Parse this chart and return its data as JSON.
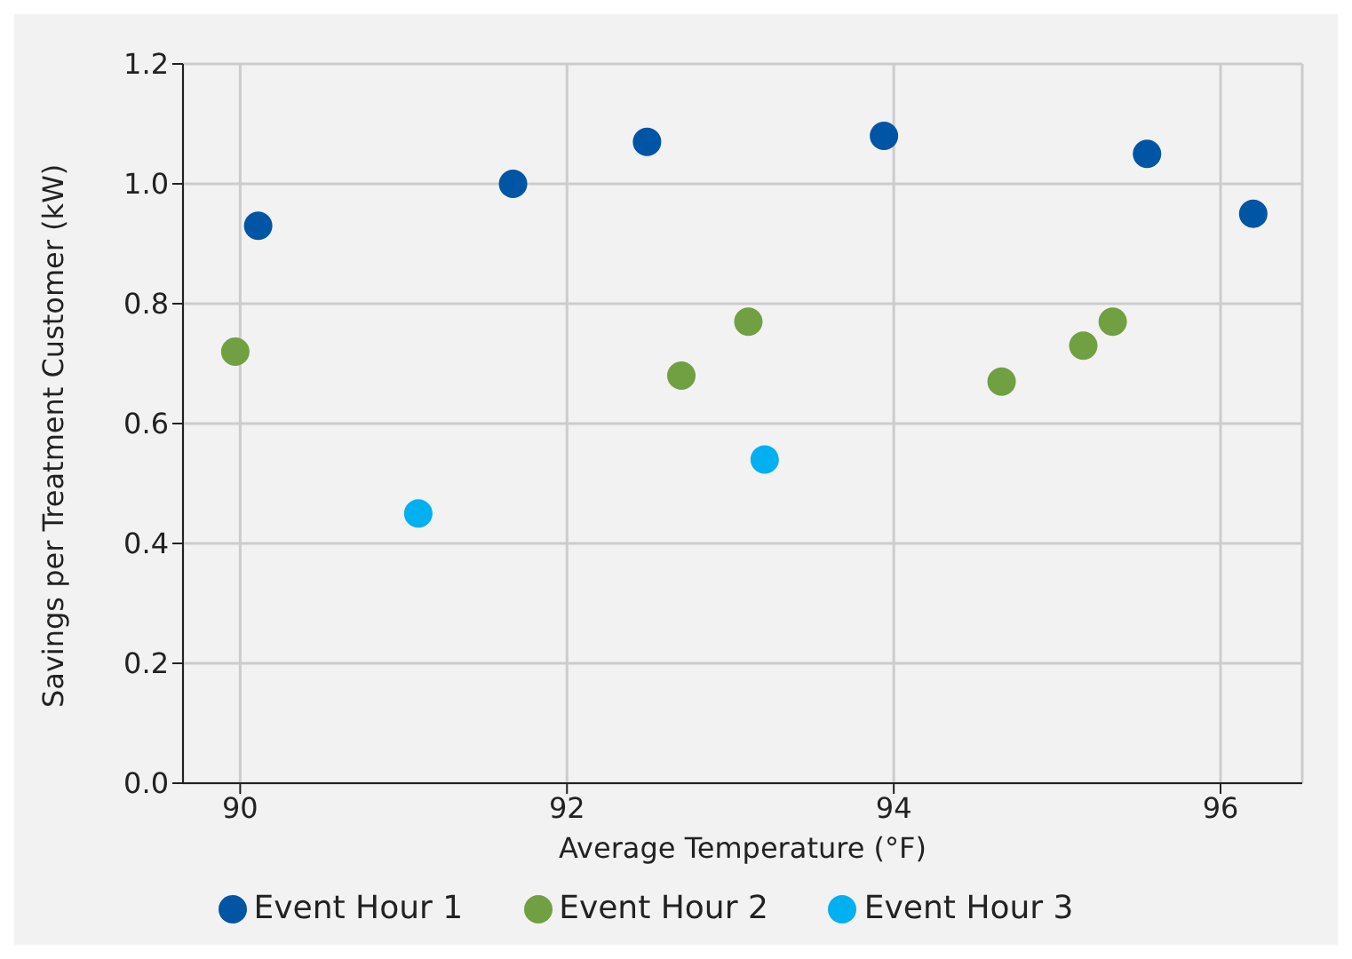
{
  "chart_data": {
    "type": "scatter",
    "xlabel": "Average Temperature (°F)",
    "ylabel": "Savings per Treatment Customer (kW)",
    "xlim": [
      89.65,
      96.5
    ],
    "xticks": [
      90,
      92,
      94,
      96
    ],
    "ylim": [
      0,
      1.2
    ],
    "yticks": [
      {
        "value": 0,
        "label": "0.0"
      },
      0.2,
      0.4,
      0.6,
      0.8,
      {
        "value": 1,
        "label": "1.0"
      },
      1.2
    ],
    "grid": true,
    "legend": "bottom",
    "marker": "circle",
    "series": [
      {
        "name": "Event Hour 1",
        "color": "#0055a5",
        "x": [
          90.11,
          91.67,
          92.49,
          93.94,
          95.55,
          96.2
        ],
        "values": [
          0.93,
          1.0,
          1.07,
          1.08,
          1.05,
          0.95
        ]
      },
      {
        "name": "Event Hour 2",
        "color": "#70a042",
        "x": [
          89.97,
          92.7,
          93.11,
          94.66,
          95.16,
          95.34
        ],
        "values": [
          0.72,
          0.68,
          0.77,
          0.67,
          0.73,
          0.77
        ]
      },
      {
        "name": "Event Hour 3",
        "color": "#00b0f0",
        "x": [
          91.09,
          93.21
        ],
        "values": [
          0.45,
          0.54
        ]
      }
    ]
  }
}
